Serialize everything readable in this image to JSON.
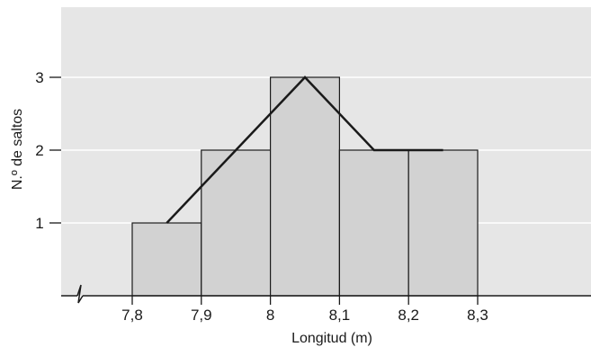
{
  "chart_data": {
    "type": "bar",
    "subtype": "histogram-with-frequency-polygon",
    "xlabel": "Longitud (m)",
    "ylabel": "N.º de saltos",
    "bins": [
      {
        "start": 7.8,
        "end": 7.9,
        "value": 1
      },
      {
        "start": 7.9,
        "end": 8.0,
        "value": 2
      },
      {
        "start": 8.0,
        "end": 8.1,
        "value": 3
      },
      {
        "start": 8.1,
        "end": 8.2,
        "value": 2
      },
      {
        "start": 8.2,
        "end": 8.3,
        "value": 2
      }
    ],
    "polygon": [
      {
        "x": 7.85,
        "y": 1
      },
      {
        "x": 7.95,
        "y": 2
      },
      {
        "x": 8.05,
        "y": 3
      },
      {
        "x": 8.15,
        "y": 2
      },
      {
        "x": 8.25,
        "y": 2
      }
    ],
    "x_ticks": [
      {
        "value": 7.8,
        "label": "7,8"
      },
      {
        "value": 7.9,
        "label": "7,9"
      },
      {
        "value": 8.0,
        "label": "8"
      },
      {
        "value": 8.1,
        "label": "8,1"
      },
      {
        "value": 8.2,
        "label": "8,2"
      },
      {
        "value": 8.3,
        "label": "8,3"
      }
    ],
    "y_ticks": [
      {
        "value": 1,
        "label": "1"
      },
      {
        "value": 2,
        "label": "2"
      },
      {
        "value": 3,
        "label": "3"
      }
    ],
    "xlim": [
      7.3,
      8.8
    ],
    "ylim": [
      0,
      4
    ],
    "axis_break": true,
    "grid": true,
    "colors": {
      "plot_background": "#e6e6e6",
      "bar_fill": "#d2d2d2",
      "bar_stroke": "#1a1a1a",
      "polygon_stroke": "#1a1a1a",
      "gridline": "#ffffff"
    }
  }
}
